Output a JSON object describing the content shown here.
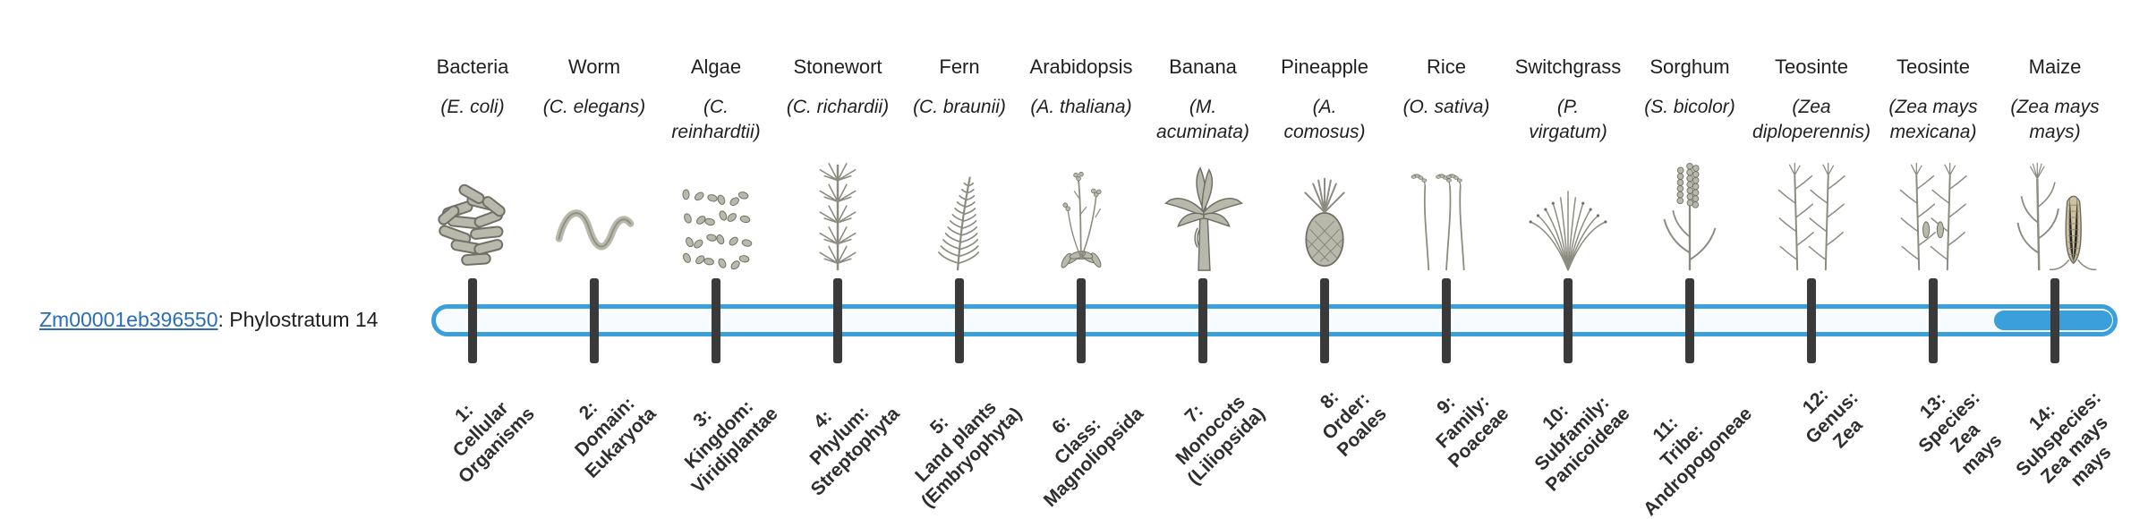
{
  "gene": {
    "id": "Zm00001eb396550",
    "suffix": ": Phylostratum 14",
    "phylostratum": 14
  },
  "colors": {
    "track_border": "#3b9fdc",
    "track_background": "#f7fbfe",
    "highlight_fill": "#3b9fdc",
    "tick": "#3a3a3a",
    "link": "#2a6db8",
    "illustration_gray": "#8b8b80"
  },
  "taxa": [
    {
      "common": "Bacteria",
      "scientific": "(E. coli)",
      "icon": "bacteria",
      "stratum": "1:\nCellular\nOrganisms"
    },
    {
      "common": "Worm",
      "scientific": "(C. elegans)",
      "icon": "worm",
      "stratum": "2:\nDomain:\nEukaryota"
    },
    {
      "common": "Algae",
      "scientific": "(C.\nreinhardtii)",
      "icon": "algae",
      "stratum": "3:\nKingdom:\nViridiplantae"
    },
    {
      "common": "Stonewort",
      "scientific": "(C. richardii)",
      "icon": "stonewort",
      "stratum": "4:\nPhylum:\nStreptophyta"
    },
    {
      "common": "Fern",
      "scientific": "(C. braunii)",
      "icon": "fern",
      "stratum": "5:\nLand plants\n(Embryophyta)"
    },
    {
      "common": "Arabidopsis",
      "scientific": "(A. thaliana)",
      "icon": "arabidopsis",
      "stratum": "6:\nClass:\nMagnoliopsida"
    },
    {
      "common": "Banana",
      "scientific": "(M.\nacuminata)",
      "icon": "banana",
      "stratum": "7:\nMonocots\n(Liliopsida)"
    },
    {
      "common": "Pineapple",
      "scientific": "(A.\ncomosus)",
      "icon": "pineapple",
      "stratum": "8:\nOrder:\nPoales"
    },
    {
      "common": "Rice",
      "scientific": "(O. sativa)",
      "icon": "rice",
      "stratum": "9:\nFamily:\nPoaceae"
    },
    {
      "common": "Switchgrass",
      "scientific": "(P.\nvirgatum)",
      "icon": "switchgrass",
      "stratum": "10:\nSubfamily:\nPanicoideae"
    },
    {
      "common": "Sorghum",
      "scientific": "(S. bicolor)",
      "icon": "sorghum",
      "stratum": "11:\nTribe:\nAndropogoneae"
    },
    {
      "common": "Teosinte",
      "scientific": "(Zea\ndiploperennis)",
      "icon": "teosinte",
      "stratum": "12:\nGenus:\nZea"
    },
    {
      "common": "Teosinte",
      "scientific": "(Zea mays\nmexicana)",
      "icon": "teosinte-mexicana",
      "stratum": "13:\nSpecies:\nZea\nmays"
    },
    {
      "common": "Maize",
      "scientific": "(Zea mays\nmays)",
      "icon": "maize",
      "stratum": "14:\nSubspecies:\nZea mays\nmays"
    }
  ]
}
